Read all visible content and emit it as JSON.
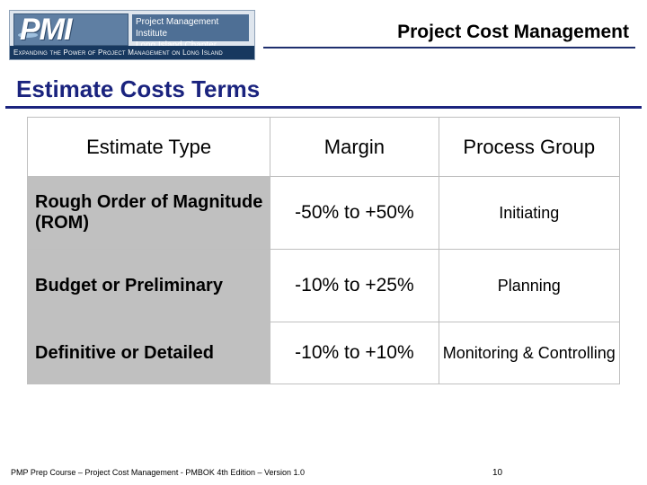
{
  "header": {
    "org_lines": [
      "Project Management Institute",
      "Long Island Chapter"
    ],
    "logo_letters": "PMI",
    "tagline": "Expanding the Power of Project Management on Long Island",
    "title": "Project Cost Management"
  },
  "slide": {
    "title": "Estimate Costs Terms"
  },
  "table": {
    "headers": [
      "Estimate Type",
      "Margin",
      "Process Group"
    ],
    "rows": [
      {
        "type": "Rough Order of Magnitude (ROM)",
        "margin": "-50% to +50%",
        "process_group": "Initiating"
      },
      {
        "type": "Budget or Preliminary",
        "margin": "-10% to +25%",
        "process_group": "Planning"
      },
      {
        "type": "Definitive or Detailed",
        "margin": "-10% to +10%",
        "process_group": "Monitoring & Controlling"
      }
    ]
  },
  "footer": {
    "text": "PMP Prep Course – Project Cost Management - PMBOK 4th Edition – Version 1.0",
    "page": "10"
  },
  "colors": {
    "title": "#1a237e",
    "table_shade": "#c0c0c0",
    "logo_banner": "#17385f"
  }
}
